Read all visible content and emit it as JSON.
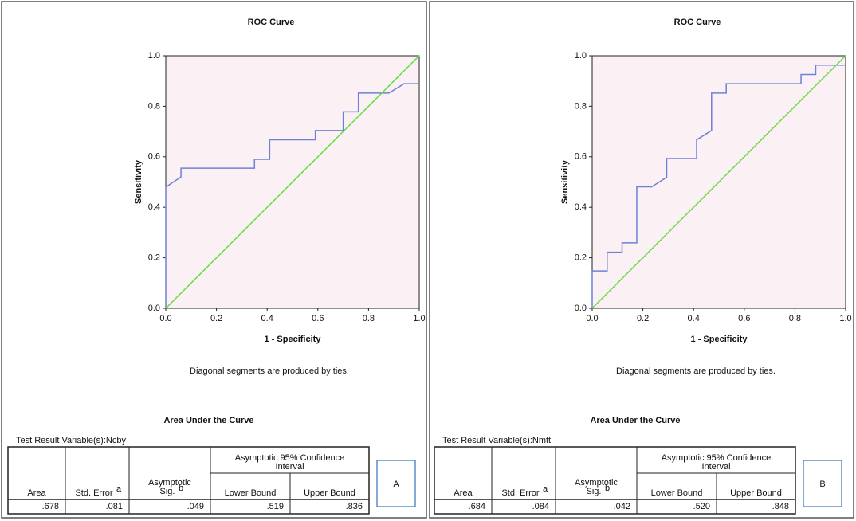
{
  "chart_data": [
    {
      "type": "line",
      "title": "ROC Curve",
      "x_label": "1 - Specificity",
      "y_label": "Sensitivity",
      "note": "Diagonal segments are produced by ties.",
      "xlim": [
        0,
        1
      ],
      "ylim": [
        0,
        1
      ],
      "xticks": [
        {
          "value": 0,
          "label": "0.0"
        },
        {
          "value": 0.2,
          "label": "0.2"
        },
        {
          "value": 0.4,
          "label": "0.4"
        },
        {
          "value": 0.6,
          "label": "0.6"
        },
        {
          "value": 0.8,
          "label": "0.8"
        },
        {
          "value": 1,
          "label": "1.0"
        }
      ],
      "yticks": [
        {
          "value": 0,
          "label": "0.0"
        },
        {
          "value": 0.2,
          "label": "0.2"
        },
        {
          "value": 0.4,
          "label": "0.4"
        },
        {
          "value": 0.6,
          "label": "0.6"
        },
        {
          "value": 0.8,
          "label": "0.8"
        },
        {
          "value": 1,
          "label": "1.0"
        }
      ],
      "background": "#fbf0f3",
      "series": [
        {
          "color": "#6f80d8",
          "x": [
            0,
            0,
            0.06,
            0.06,
            0.35,
            0.35,
            0.41,
            0.41,
            0.59,
            0.59,
            0.7,
            0.7,
            0.76,
            0.76,
            0.88,
            0.94,
            1
          ],
          "values": [
            0,
            0.48,
            0.52,
            0.555,
            0.555,
            0.59,
            0.59,
            0.667,
            0.667,
            0.704,
            0.704,
            0.778,
            0.778,
            0.852,
            0.852,
            0.889,
            0.889
          ]
        },
        {
          "color": "#66dd44",
          "x": [
            0,
            1
          ],
          "values": [
            0,
            1
          ]
        }
      ]
    },
    {
      "type": "line",
      "title": "ROC Curve",
      "x_label": "1 - Specificity",
      "y_label": "Sensitivity",
      "note": "Diagonal segments are produced by ties.",
      "xlim": [
        0,
        1
      ],
      "ylim": [
        0,
        1
      ],
      "xticks": [
        {
          "value": 0,
          "label": "0.0"
        },
        {
          "value": 0.2,
          "label": "0.2"
        },
        {
          "value": 0.4,
          "label": "0.4"
        },
        {
          "value": 0.6,
          "label": "0.6"
        },
        {
          "value": 0.8,
          "label": "0.8"
        },
        {
          "value": 1,
          "label": "1.0"
        }
      ],
      "yticks": [
        {
          "value": 0,
          "label": "0.0"
        },
        {
          "value": 0.2,
          "label": "0.2"
        },
        {
          "value": 0.4,
          "label": "0.4"
        },
        {
          "value": 0.6,
          "label": "0.6"
        },
        {
          "value": 0.8,
          "label": "0.8"
        },
        {
          "value": 1,
          "label": "1.0"
        }
      ],
      "background": "#fbf0f3",
      "series": [
        {
          "color": "#6f80d8",
          "x": [
            0,
            0,
            0.059,
            0.059,
            0.118,
            0.118,
            0.176,
            0.176,
            0.235,
            0.294,
            0.294,
            0.412,
            0.412,
            0.471,
            0.471,
            0.529,
            0.529,
            0.824,
            0.824,
            0.882,
            0.882,
            1
          ],
          "values": [
            0,
            0.148,
            0.148,
            0.222,
            0.222,
            0.259,
            0.259,
            0.481,
            0.481,
            0.519,
            0.593,
            0.593,
            0.667,
            0.704,
            0.852,
            0.852,
            0.889,
            0.889,
            0.926,
            0.926,
            0.963,
            0.963
          ]
        },
        {
          "color": "#66dd44",
          "x": [
            0,
            1
          ],
          "values": [
            0,
            1
          ]
        }
      ]
    }
  ],
  "panels": [
    {
      "table_title": "Area Under the Curve",
      "variable": "Test Result Variable(s):Ncby",
      "headers": {
        "area": "Area",
        "std_error": "Std. Error",
        "std_error_note": "a",
        "sig": [
          "Asymptotic",
          "Sig."
        ],
        "sig_note": "b",
        "ci": [
          "Asymptotic 95% Confidence",
          "Interval"
        ],
        "lower": "Lower Bound",
        "upper": "Upper Bound"
      },
      "row": [
        ".678",
        ".081",
        ".049",
        ".519",
        ".836"
      ],
      "label": "A"
    },
    {
      "table_title": "Area Under the Curve",
      "variable": "Test Result Variable(s):Nmtt",
      "headers": {
        "area": "Area",
        "std_error": "Std. Error",
        "std_error_note": "a",
        "sig": [
          "Asymptotic",
          "Sig."
        ],
        "sig_note": "b",
        "ci": [
          "Asymptotic 95% Confidence",
          "Interval"
        ],
        "lower": "Lower Bound",
        "upper": "Upper Bound"
      },
      "row": [
        ".684",
        ".084",
        ".042",
        ".520",
        ".848"
      ],
      "label": "B"
    }
  ]
}
